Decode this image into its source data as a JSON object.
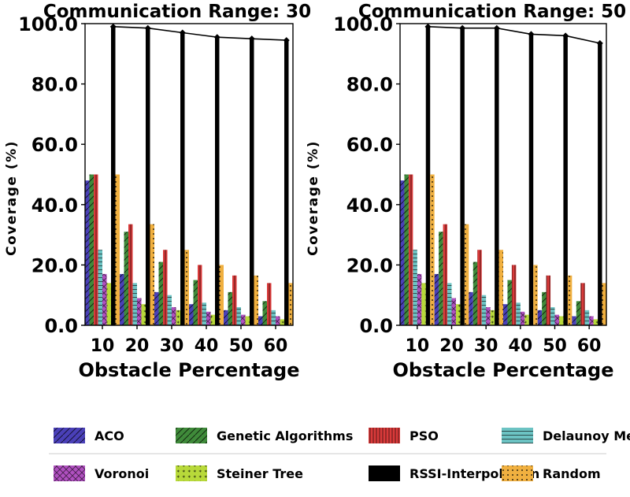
{
  "legend": {
    "items": [
      {
        "label": "ACO",
        "color": "#4a40b8",
        "hatch": "diag"
      },
      {
        "label": "Genetic Algorithms",
        "color": "#3f8a3a",
        "hatch": "diag"
      },
      {
        "label": "PSO",
        "color": "#d93a3a",
        "hatch": "vert"
      },
      {
        "label": "Delaunoy Method",
        "color": "#6cc3c3",
        "hatch": "horiz"
      },
      {
        "label": "Voronoi",
        "color": "#b050c0",
        "hatch": "cross"
      },
      {
        "label": "Steiner Tree",
        "color": "#b8d93a",
        "hatch": "star"
      },
      {
        "label": "RSSI-Interpolation",
        "color": "#000000",
        "hatch": "none"
      },
      {
        "label": "Random",
        "color": "#f0b040",
        "hatch": "dots"
      }
    ]
  },
  "chart_data": [
    {
      "type": "bar",
      "title": "Communication Range: 30",
      "xlabel": "Obstacle Percentage",
      "ylabel": "Coverage (%)",
      "ylim": [
        0,
        100
      ],
      "yticks": [
        "0.0",
        "20.0",
        "40.0",
        "60.0",
        "80.0",
        "100.0"
      ],
      "categories": [
        "10",
        "20",
        "30",
        "40",
        "50",
        "60"
      ],
      "series": [
        {
          "name": "ACO",
          "values": [
            48,
            17,
            11,
            7,
            5,
            3
          ]
        },
        {
          "name": "Genetic Algorithms",
          "values": [
            50,
            31,
            21,
            15,
            11,
            8
          ]
        },
        {
          "name": "PSO",
          "values": [
            50,
            33.5,
            25,
            20,
            16.5,
            14
          ]
        },
        {
          "name": "Delaunoy Method",
          "values": [
            25,
            14,
            10,
            7.5,
            6,
            5
          ]
        },
        {
          "name": "Voronoi",
          "values": [
            17,
            9,
            6,
            4.5,
            3.5,
            3
          ]
        },
        {
          "name": "Steiner Tree",
          "values": [
            14,
            7,
            5,
            3.5,
            3,
            2
          ]
        },
        {
          "name": "RSSI-Interpolation",
          "values": [
            99,
            98.5,
            97,
            95.5,
            95,
            94.5
          ]
        },
        {
          "name": "Random",
          "values": [
            50,
            33.5,
            25,
            20,
            16.5,
            14
          ]
        }
      ]
    },
    {
      "type": "bar",
      "title": "Communication Range: 50",
      "xlabel": "Obstacle Percentage",
      "ylabel": "Coverage (%)",
      "ylim": [
        0,
        100
      ],
      "yticks": [
        "0.0",
        "20.0",
        "40.0",
        "60.0",
        "80.0",
        "100.0"
      ],
      "categories": [
        "10",
        "20",
        "30",
        "40",
        "50",
        "60"
      ],
      "series": [
        {
          "name": "ACO",
          "values": [
            48,
            17,
            11,
            7,
            5,
            3
          ]
        },
        {
          "name": "Genetic Algorithms",
          "values": [
            50,
            31,
            21,
            15,
            11,
            8
          ]
        },
        {
          "name": "PSO",
          "values": [
            50,
            33.5,
            25,
            20,
            16.5,
            14
          ]
        },
        {
          "name": "Delaunoy Method",
          "values": [
            25,
            14,
            10,
            7.5,
            6,
            5
          ]
        },
        {
          "name": "Voronoi",
          "values": [
            17,
            9,
            6,
            4.5,
            3.5,
            3
          ]
        },
        {
          "name": "Steiner Tree",
          "values": [
            14,
            7,
            5,
            3.5,
            3,
            2
          ]
        },
        {
          "name": "RSSI-Interpolation",
          "values": [
            99,
            98.5,
            98.5,
            96.5,
            96,
            93.5
          ]
        },
        {
          "name": "Random",
          "values": [
            50,
            33.5,
            25,
            20,
            16.5,
            14
          ]
        }
      ]
    }
  ]
}
